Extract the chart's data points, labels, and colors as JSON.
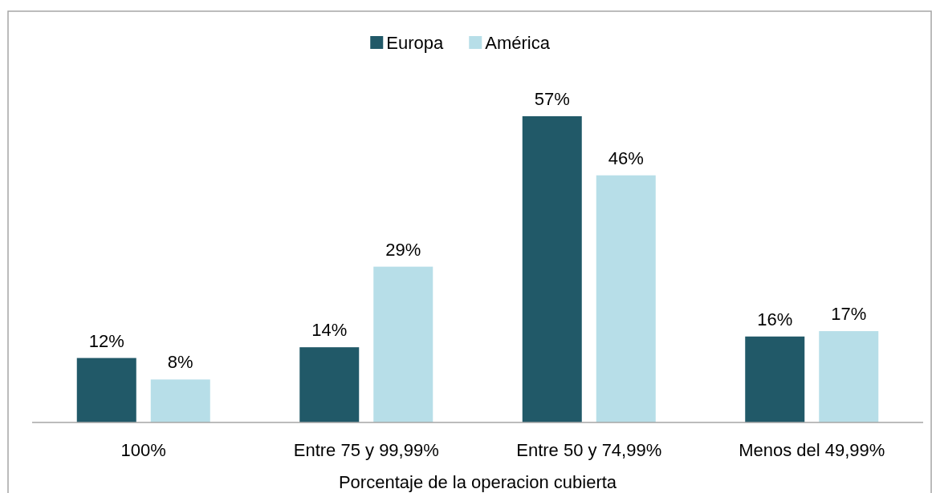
{
  "chart_data": {
    "type": "bar",
    "xlabel": "Porcentaje de la operacion cubierta",
    "categories": [
      "100%",
      "Entre 75 y 99,99%",
      "Entre 50 y 74,99%",
      "Menos del 49,99%"
    ],
    "series": [
      {
        "name": "Europa",
        "color": "#215968",
        "values": [
          12,
          14,
          57,
          16
        ],
        "value_labels": [
          "12%",
          "14%",
          "57%",
          "16%"
        ]
      },
      {
        "name": "América",
        "color": "#b7dee8",
        "values": [
          8,
          29,
          46,
          17
        ],
        "value_labels": [
          "8%",
          "29%",
          "46%",
          "17%"
        ]
      }
    ],
    "legend": "top",
    "grid": false
  }
}
